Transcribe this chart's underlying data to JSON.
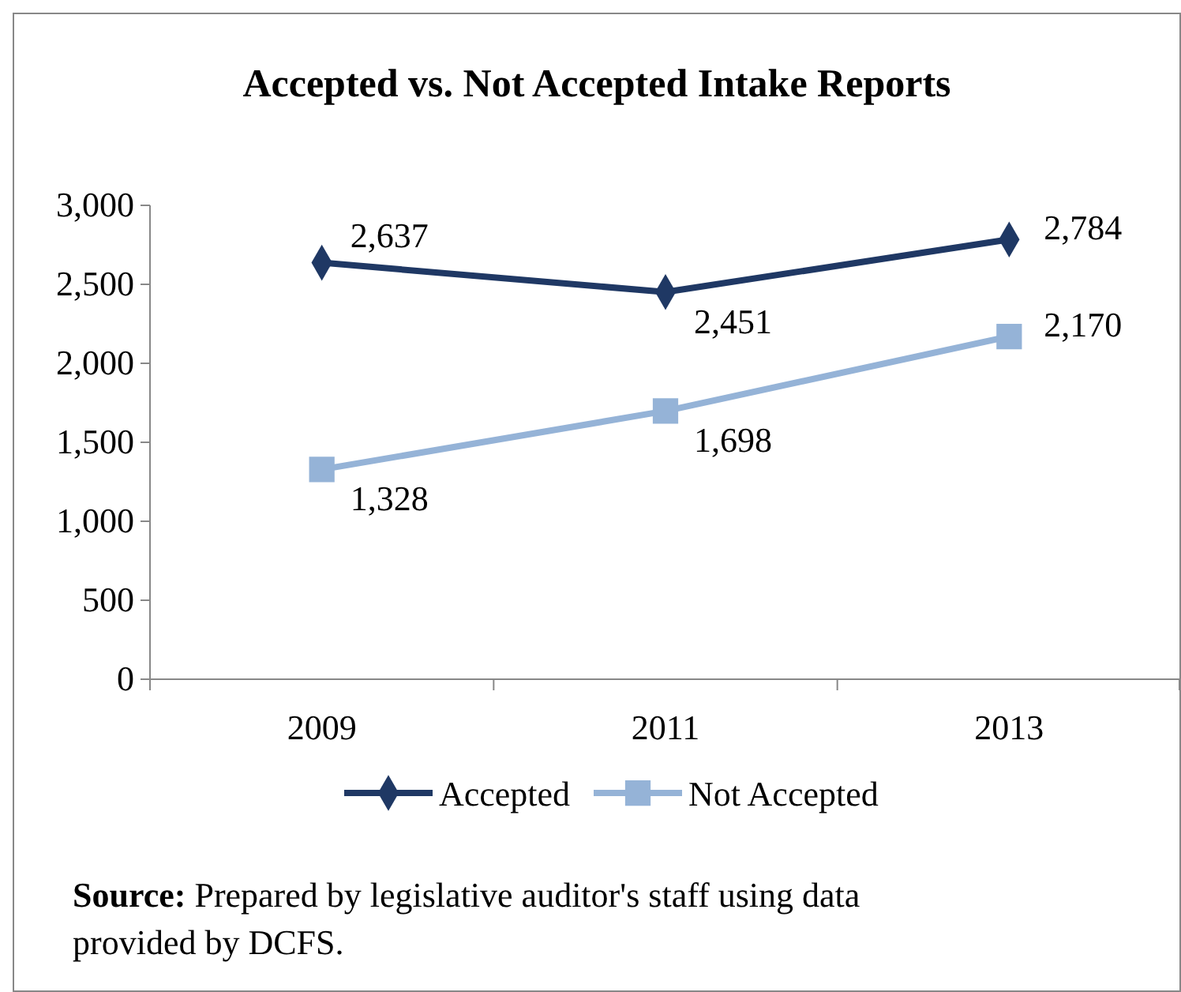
{
  "chart_data": {
    "type": "line",
    "title": "Accepted vs. Not Accepted Intake Reports",
    "categories": [
      "2009",
      "2011",
      "2013"
    ],
    "series": [
      {
        "name": "Accepted",
        "color": "#1f3864",
        "marker": "diamond",
        "values": [
          2637,
          2451,
          2784
        ],
        "value_labels": [
          "2,637",
          "2,451",
          "2,784"
        ]
      },
      {
        "name": "Not Accepted",
        "color": "#95b3d7",
        "marker": "square",
        "values": [
          1328,
          1698,
          2170
        ],
        "value_labels": [
          "1,328",
          "1,698",
          "2,170"
        ]
      }
    ],
    "ylim": [
      0,
      3000
    ],
    "yticks": [
      {
        "value": 0,
        "label": "0"
      },
      {
        "value": 500,
        "label": "500"
      },
      {
        "value": 1000,
        "label": "1,000"
      },
      {
        "value": 1500,
        "label": "1,500"
      },
      {
        "value": 2000,
        "label": "2,000"
      },
      {
        "value": 2500,
        "label": "2,500"
      },
      {
        "value": 3000,
        "label": "3,000"
      }
    ],
    "legend": "bottom",
    "line_style": "solid",
    "annotations": [
      "Source: Prepared by legislative auditor's staff using data provided by DCFS."
    ]
  }
}
